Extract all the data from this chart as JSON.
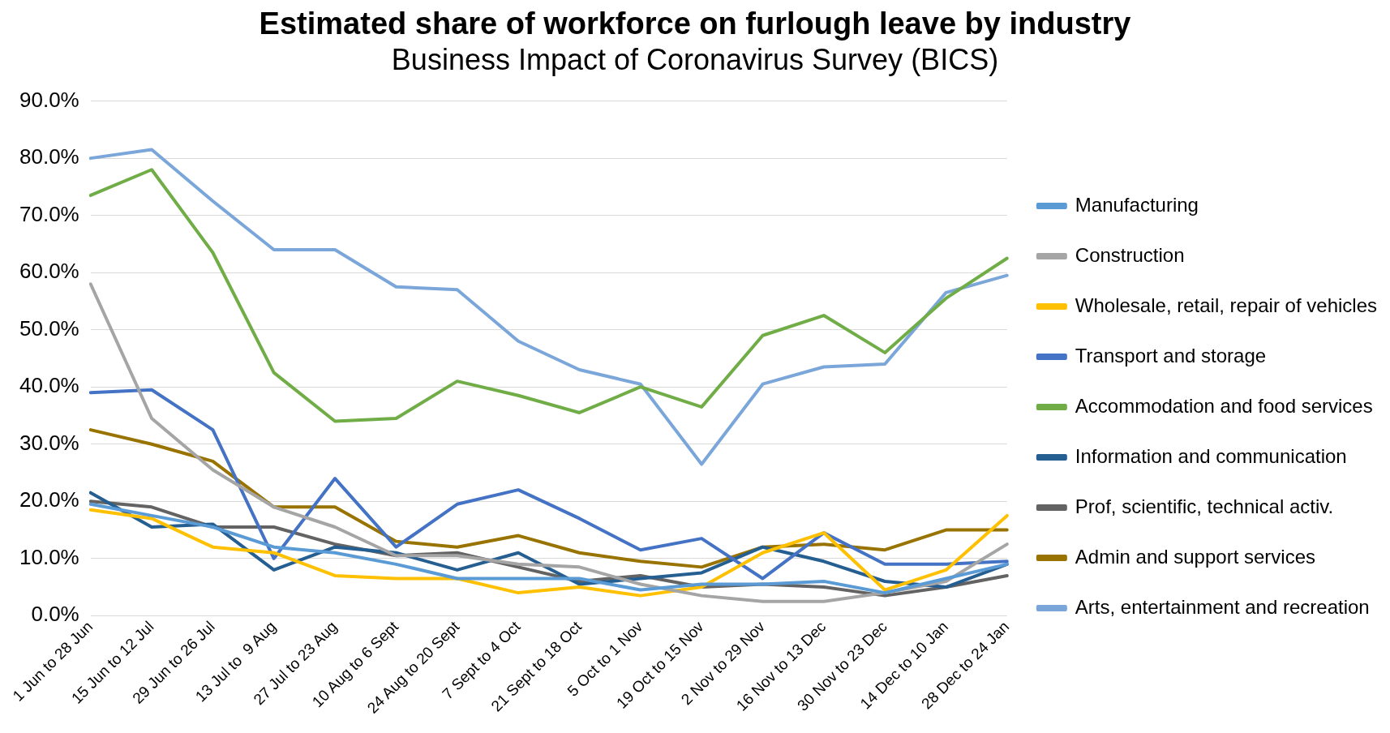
{
  "chart_data": {
    "type": "line",
    "title": "Estimated share of workforce on furlough leave by industry",
    "subtitle": "Business Impact of Coronavirus Survey (BICS)",
    "categories": [
      "1 Jun to 28 Jun",
      "15 Jun to 12 Jul",
      "29 Jun to 26 Jul",
      "13 Jul to  9 Aug",
      "27 Jul to 23 Aug",
      "10 Aug to 6 Sept",
      "24 Aug to 20 Sept",
      "7 Sept to 4 Oct",
      "21 Sept to 18 Oct",
      "5 Oct to 1 Nov",
      "19 Oct to 15 Nov",
      "2 Nov to 29 Nov",
      "16 Nov to 13 Dec",
      "30 Nov to 23 Dec",
      "14 Dec to 10 Jan",
      "28 Dec to 24 Jan"
    ],
    "series": [
      {
        "name": "Manufacturing",
        "color": "#5b9bd5",
        "values": [
          19.5,
          17.5,
          15.5,
          12,
          11,
          9,
          6.5,
          6.5,
          6.5,
          4.5,
          5.5,
          5.5,
          6,
          4,
          6.5,
          9
        ]
      },
      {
        "name": "Construction",
        "color": "#a5a5a5",
        "values": [
          58,
          34.5,
          25.5,
          19,
          15.5,
          10.5,
          10.5,
          9,
          8.5,
          5.5,
          3.5,
          2.5,
          2.5,
          4,
          6,
          12.5
        ]
      },
      {
        "name": "Wholesale, retail, repair of vehicles",
        "color": "#ffc000",
        "values": [
          18.5,
          17,
          12,
          11,
          7,
          6.5,
          6.5,
          4,
          5,
          3.5,
          5,
          11,
          14.5,
          4.5,
          8,
          17.5
        ]
      },
      {
        "name": "Transport and storage",
        "color": "#4472c4",
        "values": [
          39,
          39.5,
          32.5,
          10,
          24,
          12,
          19.5,
          22,
          17,
          11.5,
          13.5,
          6.5,
          14.5,
          9,
          9,
          9.5
        ]
      },
      {
        "name": "Accommodation and food services",
        "color": "#70ad47",
        "values": [
          73.5,
          78,
          63.5,
          42.5,
          34,
          34.5,
          41,
          38.5,
          35.5,
          40,
          36.5,
          49,
          52.5,
          46,
          55.5,
          62.5
        ]
      },
      {
        "name": "Information and communication",
        "color": "#255e91",
        "values": [
          21.5,
          15.5,
          16,
          8,
          12,
          11,
          8,
          11,
          5.5,
          6.5,
          7.5,
          12,
          9.5,
          6,
          5,
          9
        ]
      },
      {
        "name": "Prof, scientific, technical activ.",
        "color": "#636363",
        "values": [
          20,
          19,
          15.5,
          15.5,
          12.5,
          10.5,
          11,
          8.5,
          6,
          7,
          5,
          5.5,
          5,
          3.5,
          5,
          7
        ]
      },
      {
        "name": "Admin and support services",
        "color": "#997300",
        "values": [
          32.5,
          30,
          27,
          19,
          19,
          13,
          12,
          14,
          11,
          9.5,
          8.5,
          12,
          12.5,
          11.5,
          15,
          15
        ]
      },
      {
        "name": "Arts, entertainment and recreation",
        "color": "#7aa6da",
        "values": [
          80,
          81.5,
          72.5,
          64,
          64,
          57.5,
          57,
          48,
          43,
          40.5,
          26.5,
          40.5,
          43.5,
          44,
          56.5,
          59.5
        ]
      }
    ],
    "ylim": [
      0,
      90
    ],
    "yticks": [
      {
        "value": 0,
        "label": "0.0%"
      },
      {
        "value": 10,
        "label": "10.0%"
      },
      {
        "value": 20,
        "label": "20.0%"
      },
      {
        "value": 30,
        "label": "30.0%"
      },
      {
        "value": 40,
        "label": "40.0%"
      },
      {
        "value": 50,
        "label": "50.0%"
      },
      {
        "value": 60,
        "label": "60.0%"
      },
      {
        "value": 70,
        "label": "70.0%"
      },
      {
        "value": 80,
        "label": "80.0%"
      },
      {
        "value": 90,
        "label": "90.0%"
      }
    ],
    "grid": "y",
    "legend": "right",
    "marker": "none",
    "line_style": "solid"
  }
}
